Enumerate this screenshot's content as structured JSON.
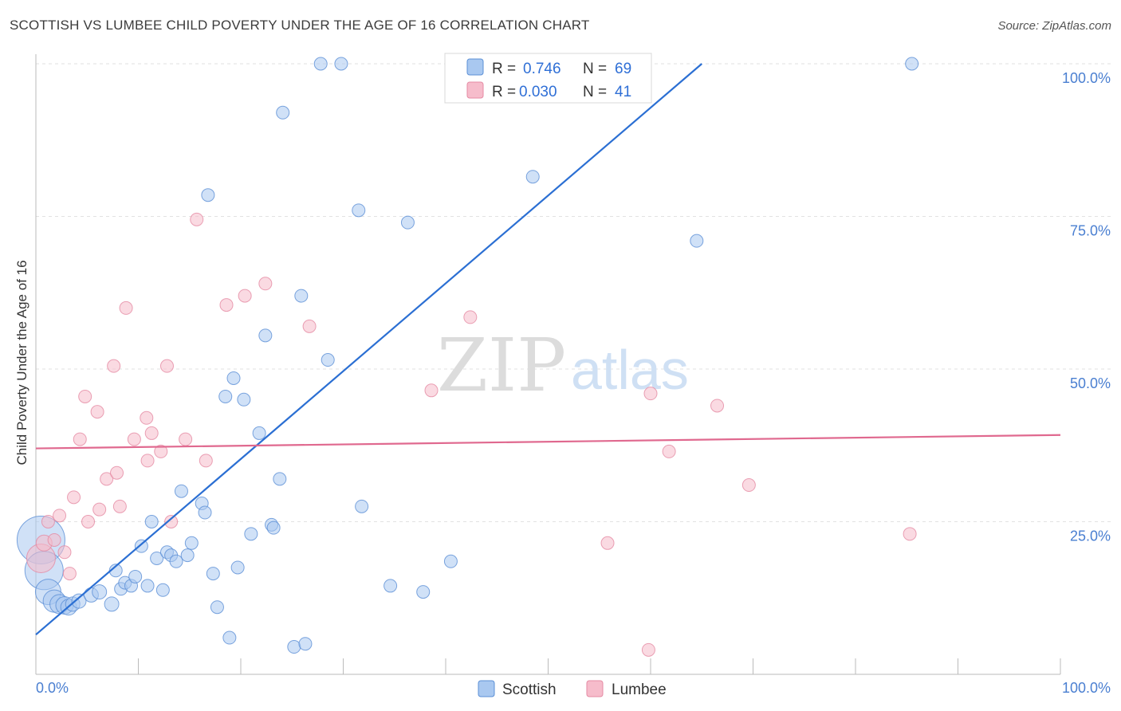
{
  "header": {
    "title": "SCOTTISH VS LUMBEE CHILD POVERTY UNDER THE AGE OF 16 CORRELATION CHART",
    "source": "Source: ZipAtlas.com"
  },
  "watermark": {
    "zip": "ZIP",
    "atlas": "atlas"
  },
  "legend": {
    "rows": [
      {
        "r_label": "R =",
        "r_value": "0.746",
        "n_label": "N =",
        "n_value": "69",
        "color": "#a9c8f0"
      },
      {
        "r_label": "R =",
        "r_value": "0.030",
        "n_label": "N =",
        "n_value": "41",
        "color": "#f6bccb"
      }
    ]
  },
  "bottom_legend": {
    "items": [
      "Scottish",
      "Lumbee"
    ]
  },
  "chart_data": {
    "type": "scatter",
    "title": "SCOTTISH VS LUMBEE CHILD POVERTY UNDER THE AGE OF 16 CORRELATION CHART",
    "xlabel": "",
    "ylabel": "Child Poverty Under the Age of 16",
    "xlim": [
      0,
      100
    ],
    "ylim": [
      0,
      100
    ],
    "x_tick_labels": [
      "0.0%",
      "100.0%"
    ],
    "y_tick_labels": [
      "25.0%",
      "50.0%",
      "75.0%",
      "100.0%"
    ],
    "y_ticks": [
      25,
      50,
      75,
      100
    ],
    "grid": true,
    "legend_position": "top-center",
    "series": [
      {
        "name": "Scottish",
        "color": "#a9c8f0",
        "stroke": "#5b8fd6",
        "line_color": "#2b6fd3",
        "trend": {
          "x": [
            0,
            65
          ],
          "y": [
            6.5,
            100
          ]
        },
        "points": [
          [
            0.5,
            22,
            30
          ],
          [
            0.8,
            17,
            24
          ],
          [
            1.2,
            13.5,
            16
          ],
          [
            1.8,
            12,
            14
          ],
          [
            2.3,
            11.5,
            12
          ],
          [
            2.8,
            11.3,
            11
          ],
          [
            3.2,
            11,
            10
          ],
          [
            3.6,
            11.5,
            9
          ],
          [
            4.2,
            12,
            9
          ],
          [
            5.4,
            13,
            9
          ],
          [
            6.2,
            13.5,
            9
          ],
          [
            7.4,
            11.5,
            9
          ],
          [
            7.8,
            17,
            8
          ],
          [
            8.3,
            14,
            8
          ],
          [
            8.7,
            15,
            8
          ],
          [
            9.3,
            14.5,
            8
          ],
          [
            9.7,
            16,
            8
          ],
          [
            10.3,
            21,
            8
          ],
          [
            10.9,
            14.5,
            8
          ],
          [
            11.3,
            25,
            8
          ],
          [
            11.8,
            19,
            8
          ],
          [
            12.4,
            13.8,
            8
          ],
          [
            12.8,
            20,
            8
          ],
          [
            13.2,
            19.5,
            8
          ],
          [
            13.7,
            18.5,
            8
          ],
          [
            14.2,
            30,
            8
          ],
          [
            14.8,
            19.5,
            8
          ],
          [
            15.2,
            21.5,
            8
          ],
          [
            16.2,
            28,
            8
          ],
          [
            16.5,
            26.5,
            8
          ],
          [
            16.8,
            78.5,
            8
          ],
          [
            17.3,
            16.5,
            8
          ],
          [
            17.7,
            11,
            8
          ],
          [
            18.5,
            45.5,
            8
          ],
          [
            18.9,
            6,
            8
          ],
          [
            19.3,
            48.5,
            8
          ],
          [
            19.7,
            17.5,
            8
          ],
          [
            20.3,
            45,
            8
          ],
          [
            21.0,
            23,
            8
          ],
          [
            21.8,
            39.5,
            8
          ],
          [
            22.4,
            55.5,
            8
          ],
          [
            23.0,
            24.5,
            8
          ],
          [
            23.2,
            24,
            8
          ],
          [
            23.8,
            32,
            8
          ],
          [
            24.1,
            92,
            8
          ],
          [
            25.2,
            4.5,
            8
          ],
          [
            25.9,
            62,
            8
          ],
          [
            26.3,
            5,
            8
          ],
          [
            27.8,
            100,
            8
          ],
          [
            28.5,
            51.5,
            8
          ],
          [
            29.8,
            100,
            8
          ],
          [
            31.5,
            76,
            8
          ],
          [
            31.8,
            27.5,
            8
          ],
          [
            34.6,
            14.5,
            8
          ],
          [
            36.3,
            74,
            8
          ],
          [
            37.8,
            13.5,
            8
          ],
          [
            40.5,
            18.5,
            8
          ],
          [
            47.5,
            100,
            8
          ],
          [
            48.5,
            81.5,
            8
          ],
          [
            50.3,
            100,
            8
          ],
          [
            51.0,
            100,
            8
          ],
          [
            57.8,
            100,
            8
          ],
          [
            64.5,
            71,
            8
          ],
          [
            85.5,
            100,
            8
          ]
        ]
      },
      {
        "name": "Lumbee",
        "color": "#f6bccb",
        "stroke": "#e58aa3",
        "line_color": "#e0698f",
        "trend": {
          "x": [
            0,
            100
          ],
          "y": [
            37.0,
            39.2
          ]
        },
        "points": [
          [
            0.5,
            19,
            18
          ],
          [
            0.8,
            21.5,
            10
          ],
          [
            1.2,
            25,
            8
          ],
          [
            1.8,
            22,
            8
          ],
          [
            2.3,
            26,
            8
          ],
          [
            2.8,
            20,
            8
          ],
          [
            3.3,
            16.5,
            8
          ],
          [
            3.7,
            29,
            8
          ],
          [
            4.3,
            38.5,
            8
          ],
          [
            4.8,
            45.5,
            8
          ],
          [
            5.1,
            25,
            8
          ],
          [
            6.0,
            43,
            8
          ],
          [
            6.2,
            27,
            8
          ],
          [
            6.9,
            32,
            8
          ],
          [
            7.6,
            50.5,
            8
          ],
          [
            7.9,
            33,
            8
          ],
          [
            8.2,
            27.5,
            8
          ],
          [
            8.8,
            60,
            8
          ],
          [
            9.6,
            38.5,
            8
          ],
          [
            10.8,
            42,
            8
          ],
          [
            10.9,
            35,
            8
          ],
          [
            11.3,
            39.5,
            8
          ],
          [
            12.2,
            36.5,
            8
          ],
          [
            12.8,
            50.5,
            8
          ],
          [
            13.2,
            25,
            8
          ],
          [
            14.6,
            38.5,
            8
          ],
          [
            15.7,
            74.5,
            8
          ],
          [
            16.6,
            35,
            8
          ],
          [
            18.6,
            60.5,
            8
          ],
          [
            20.4,
            62,
            8
          ],
          [
            22.4,
            64,
            8
          ],
          [
            26.7,
            57,
            8
          ],
          [
            38.6,
            46.5,
            8
          ],
          [
            42.4,
            58.5,
            8
          ],
          [
            55.8,
            21.5,
            8
          ],
          [
            59.8,
            4,
            8
          ],
          [
            60.0,
            46,
            8
          ],
          [
            61.8,
            36.5,
            8
          ],
          [
            66.5,
            44,
            8
          ],
          [
            69.6,
            31,
            8
          ],
          [
            85.3,
            23,
            8
          ]
        ]
      }
    ]
  }
}
